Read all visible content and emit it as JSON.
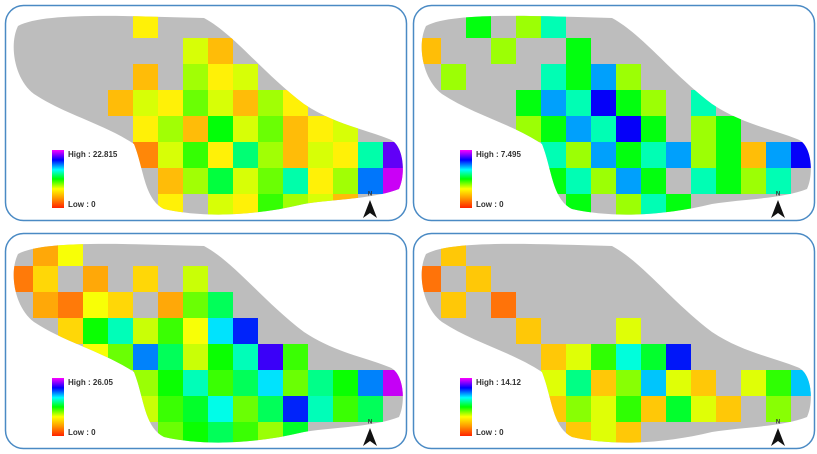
{
  "panels": [
    {
      "legend": {
        "high": {
          "value": 22.815,
          "label": "High : 22.815"
        },
        "low": {
          "value": 0,
          "label": "Low : 0"
        }
      },
      "north": "N",
      "grid": [
        [
          null,
          null,
          null,
          null,
          null,
          4,
          null,
          null,
          null,
          null,
          null,
          null,
          null,
          null,
          null,
          null
        ],
        [
          null,
          null,
          null,
          null,
          null,
          null,
          null,
          5,
          3,
          null,
          null,
          null,
          null,
          null,
          null,
          null
        ],
        [
          null,
          null,
          null,
          null,
          null,
          3,
          null,
          6,
          4,
          5,
          null,
          null,
          null,
          null,
          null,
          null
        ],
        [
          null,
          null,
          null,
          null,
          3,
          5,
          4,
          7,
          5,
          3,
          6,
          4,
          null,
          null,
          null,
          null
        ],
        [
          null,
          null,
          null,
          null,
          null,
          4,
          6,
          3,
          9,
          5,
          7,
          3,
          4,
          5,
          null,
          null
        ],
        [
          null,
          null,
          null,
          null,
          null,
          2,
          5,
          8,
          4,
          11,
          6,
          3,
          5,
          4,
          12,
          20
        ],
        [
          null,
          null,
          null,
          null,
          null,
          null,
          3,
          6,
          10,
          5,
          7,
          12,
          4,
          6,
          16,
          22
        ],
        [
          null,
          null,
          null,
          null,
          null,
          null,
          4,
          null,
          5,
          4,
          8,
          6,
          5,
          3,
          null,
          null
        ]
      ]
    },
    {
      "legend": {
        "high": {
          "value": 7.495,
          "label": "High : 7.495"
        },
        "low": {
          "value": 0,
          "label": "Low : 0"
        }
      },
      "north": "N",
      "grid": [
        [
          null,
          null,
          3,
          null,
          2,
          4,
          null,
          null,
          null,
          null,
          null,
          null,
          null,
          null,
          null,
          null
        ],
        [
          1,
          null,
          null,
          2,
          null,
          null,
          3,
          null,
          null,
          null,
          null,
          null,
          null,
          null,
          null,
          null
        ],
        [
          null,
          2,
          null,
          null,
          null,
          4,
          3,
          5,
          2,
          null,
          null,
          null,
          null,
          null,
          null,
          null
        ],
        [
          null,
          null,
          null,
          null,
          3,
          5,
          4,
          6,
          3,
          2,
          null,
          4,
          null,
          null,
          null,
          null
        ],
        [
          null,
          null,
          null,
          null,
          2,
          3,
          5,
          4,
          6,
          3,
          null,
          2,
          3,
          null,
          null,
          null
        ],
        [
          null,
          null,
          null,
          null,
          null,
          4,
          2,
          5,
          3,
          4,
          5,
          2,
          3,
          1,
          5,
          6
        ],
        [
          null,
          null,
          null,
          null,
          null,
          3,
          4,
          2,
          5,
          3,
          null,
          4,
          3,
          2,
          4,
          null
        ],
        [
          null,
          null,
          null,
          null,
          null,
          null,
          3,
          null,
          2,
          4,
          3,
          null,
          null,
          null,
          null,
          null
        ]
      ]
    },
    {
      "legend": {
        "high": {
          "value": 26.05,
          "label": "High : 26.05"
        },
        "low": {
          "value": 0,
          "label": "Low : 0"
        }
      },
      "north": "N",
      "grid": [
        [
          null,
          3,
          5,
          null,
          null,
          null,
          null,
          null,
          null,
          null,
          null,
          null,
          null,
          null,
          null,
          null
        ],
        [
          2,
          4,
          null,
          3,
          null,
          4,
          null,
          6,
          null,
          null,
          null,
          null,
          null,
          null,
          null,
          null
        ],
        [
          null,
          3,
          2,
          5,
          4,
          null,
          3,
          8,
          12,
          null,
          null,
          null,
          null,
          null,
          null,
          null
        ],
        [
          null,
          null,
          4,
          10,
          14,
          6,
          9,
          5,
          16,
          20,
          null,
          null,
          null,
          null,
          null,
          null
        ],
        [
          null,
          null,
          null,
          5,
          8,
          18,
          12,
          6,
          10,
          14,
          22,
          9,
          null,
          null,
          null,
          null
        ],
        [
          null,
          null,
          null,
          null,
          null,
          7,
          10,
          14,
          9,
          12,
          16,
          8,
          13,
          10,
          18,
          25
        ],
        [
          null,
          null,
          null,
          null,
          null,
          6,
          9,
          11,
          15,
          8,
          12,
          20,
          14,
          9,
          12,
          null
        ],
        [
          null,
          null,
          null,
          null,
          null,
          null,
          8,
          10,
          12,
          9,
          7,
          11,
          null,
          null,
          null,
          null
        ]
      ]
    },
    {
      "legend": {
        "high": {
          "value": 14.12,
          "label": "High : 14.12"
        },
        "low": {
          "value": 0,
          "label": "Low : 0"
        }
      },
      "north": "N",
      "grid": [
        [
          null,
          2,
          null,
          null,
          null,
          null,
          null,
          null,
          null,
          null,
          null,
          null,
          null,
          null,
          null,
          null
        ],
        [
          1,
          null,
          2,
          null,
          null,
          null,
          null,
          null,
          null,
          null,
          null,
          null,
          null,
          null,
          null,
          null
        ],
        [
          null,
          2,
          null,
          1,
          null,
          null,
          null,
          null,
          null,
          null,
          null,
          null,
          null,
          null,
          null,
          null
        ],
        [
          null,
          null,
          null,
          null,
          2,
          null,
          null,
          null,
          3,
          null,
          null,
          null,
          null,
          null,
          null,
          null
        ],
        [
          null,
          null,
          null,
          null,
          null,
          2,
          3,
          5,
          8,
          6,
          11,
          null,
          null,
          null,
          null,
          null
        ],
        [
          null,
          null,
          null,
          null,
          null,
          3,
          7,
          2,
          4,
          9,
          3,
          2,
          null,
          3,
          5,
          9
        ],
        [
          null,
          null,
          null,
          null,
          null,
          2,
          4,
          3,
          5,
          2,
          6,
          3,
          2,
          null,
          4,
          null
        ],
        [
          null,
          null,
          null,
          null,
          null,
          null,
          2,
          3,
          2,
          null,
          null,
          null,
          null,
          null,
          null,
          null
        ]
      ]
    }
  ]
}
